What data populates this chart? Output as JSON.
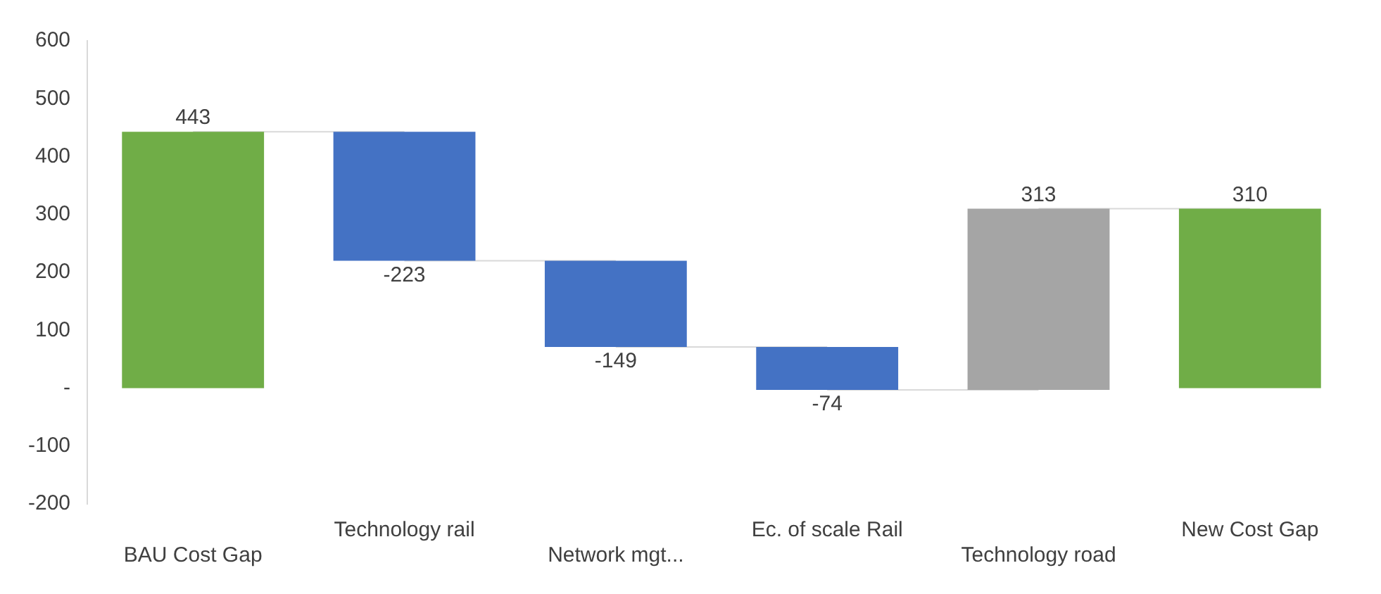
{
  "chart_data": {
    "type": "bar",
    "categories": [
      "BAU Cost Gap",
      "Technology rail",
      "Network mgt...",
      "Ec. of scale Rail",
      "Technology road",
      "New Cost Gap"
    ],
    "series": [
      {
        "values": [
          443,
          -223,
          -149,
          -74,
          313,
          310
        ],
        "value_labels": [
          "443",
          "-223",
          "-149",
          "-74",
          "313",
          "310"
        ],
        "base": [
          0,
          443,
          220,
          71,
          -3,
          0
        ],
        "colors": [
          "#70ad47",
          "#4472c4",
          "#4472c4",
          "#4472c4",
          "#a5a5a5",
          "#70ad47"
        ]
      },
      {
        "type": "line",
        "color": "#d9d9d9",
        "values": [
          443,
          443,
          null,
          null,
          null,
          null
        ]
      },
      {
        "type": "line",
        "color": "#d9d9d9",
        "values": [
          null,
          220,
          220,
          null,
          null,
          null
        ]
      },
      {
        "type": "line",
        "color": "#d9d9d9",
        "values": [
          null,
          null,
          71,
          71,
          null,
          null
        ]
      },
      {
        "type": "line",
        "color": "#d9d9d9",
        "values": [
          null,
          null,
          null,
          -3,
          -3,
          null
        ]
      },
      {
        "type": "line",
        "color": "#d9d9d9",
        "values": [
          null,
          null,
          null,
          null,
          310,
          310
        ]
      }
    ],
    "ylim": [
      -200,
      600
    ],
    "yticks": [
      -200,
      -100,
      {
        "value": 0,
        "label": "-"
      },
      100,
      200,
      300,
      400,
      500,
      600
    ],
    "grid": false,
    "legend": false,
    "marker": "none"
  }
}
